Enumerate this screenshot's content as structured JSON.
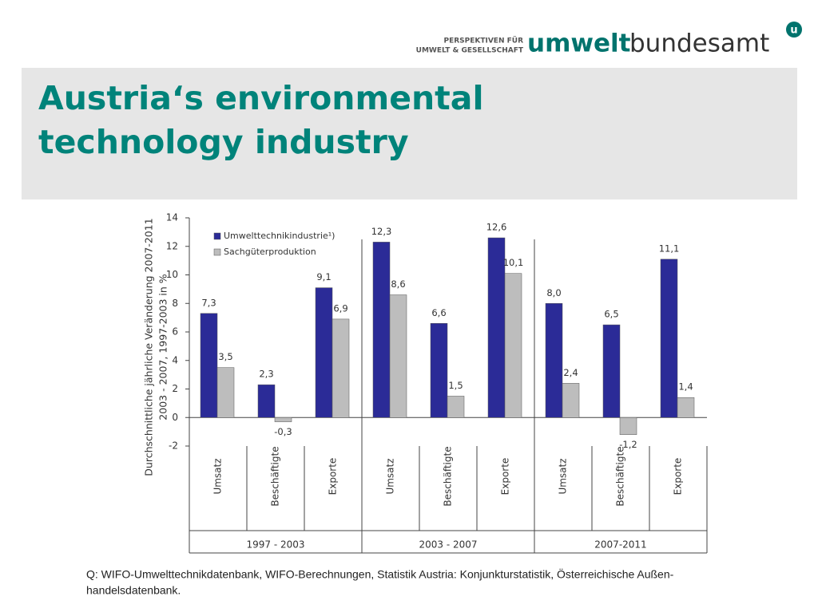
{
  "header": {
    "logo_small": [
      "PERSPEKTIVEN FÜR",
      "UMWELT & GESELLSCHAFT"
    ],
    "logo_bold": "umwelt",
    "logo_light": "bundesamt",
    "logo_icon": "u",
    "title_lines": [
      "Austria‘s environmental",
      "technology industry"
    ]
  },
  "chart_data": {
    "type": "bar",
    "y_label_lines": [
      "Durchschnittliche jährliche Veränderung 2007-2011",
      "2003 - 2007, 1997-2003 in %"
    ],
    "categories": [
      "Umsatz",
      "Beschäftigte",
      "Exporte",
      "Umsatz",
      "Beschäftigte",
      "Exporte",
      "Umsatz",
      "Beschäftigte",
      "Exporte"
    ],
    "groups": [
      "1997 - 2003",
      "2003 - 2007",
      "2007-2011"
    ],
    "series": [
      {
        "name": "Umwelttechnikindustrie¹)",
        "color": "#2b2b97",
        "values": [
          7.3,
          2.3,
          9.1,
          12.3,
          6.6,
          12.6,
          8.0,
          6.5,
          11.1
        ],
        "value_labels": [
          "7,3",
          "2,3",
          "9,1",
          "12,3",
          "6,6",
          "12,6",
          "8,0",
          "6,5",
          "11,1"
        ]
      },
      {
        "name": "Sachgüterproduktion",
        "color": "#bdbdbd",
        "values": [
          3.5,
          -0.3,
          6.9,
          8.6,
          1.5,
          10.1,
          2.4,
          -1.2,
          1.4
        ],
        "value_labels": [
          "3,5",
          "-0,3",
          "6,9",
          "8,6",
          "1,5",
          "10,1",
          "2,4",
          "-1,2",
          "1,4"
        ]
      }
    ],
    "ylim": [
      -2,
      14
    ],
    "yticks": [
      -2,
      0,
      2,
      4,
      6,
      8,
      10,
      12,
      14
    ],
    "legend": "upper left"
  },
  "source_lines": [
    "Q: WIFO-Umwelttechnikdatenbank, WIFO-Berechnungen, Statistik Austria: Konjunkturstatistik, Österreichische Außen-",
    "handelsdatenbank."
  ]
}
